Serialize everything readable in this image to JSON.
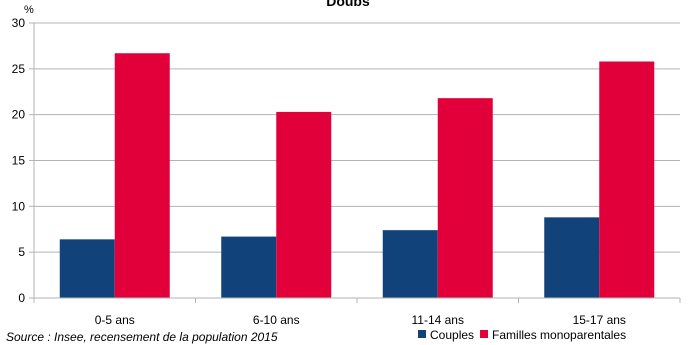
{
  "chart_data": {
    "type": "bar",
    "title": "Doubs",
    "ylabel": "%",
    "xlabel": "",
    "categories": [
      "0-5 ans",
      "6-10 ans",
      "11-14 ans",
      "15-17 ans"
    ],
    "series": [
      {
        "name": "Couples",
        "values": [
          6.4,
          6.7,
          7.4,
          8.8
        ],
        "color": "#12427a"
      },
      {
        "name": "Familles monoparentales",
        "values": [
          26.7,
          20.3,
          21.8,
          25.8
        ],
        "color": "#e2003b"
      }
    ],
    "ylim": [
      0,
      30
    ],
    "yticks": [
      0,
      5,
      10,
      15,
      20,
      25,
      30
    ],
    "grid": true,
    "legend": "bottom-right",
    "source": "Source : Insee, recensement de la population 2015"
  }
}
